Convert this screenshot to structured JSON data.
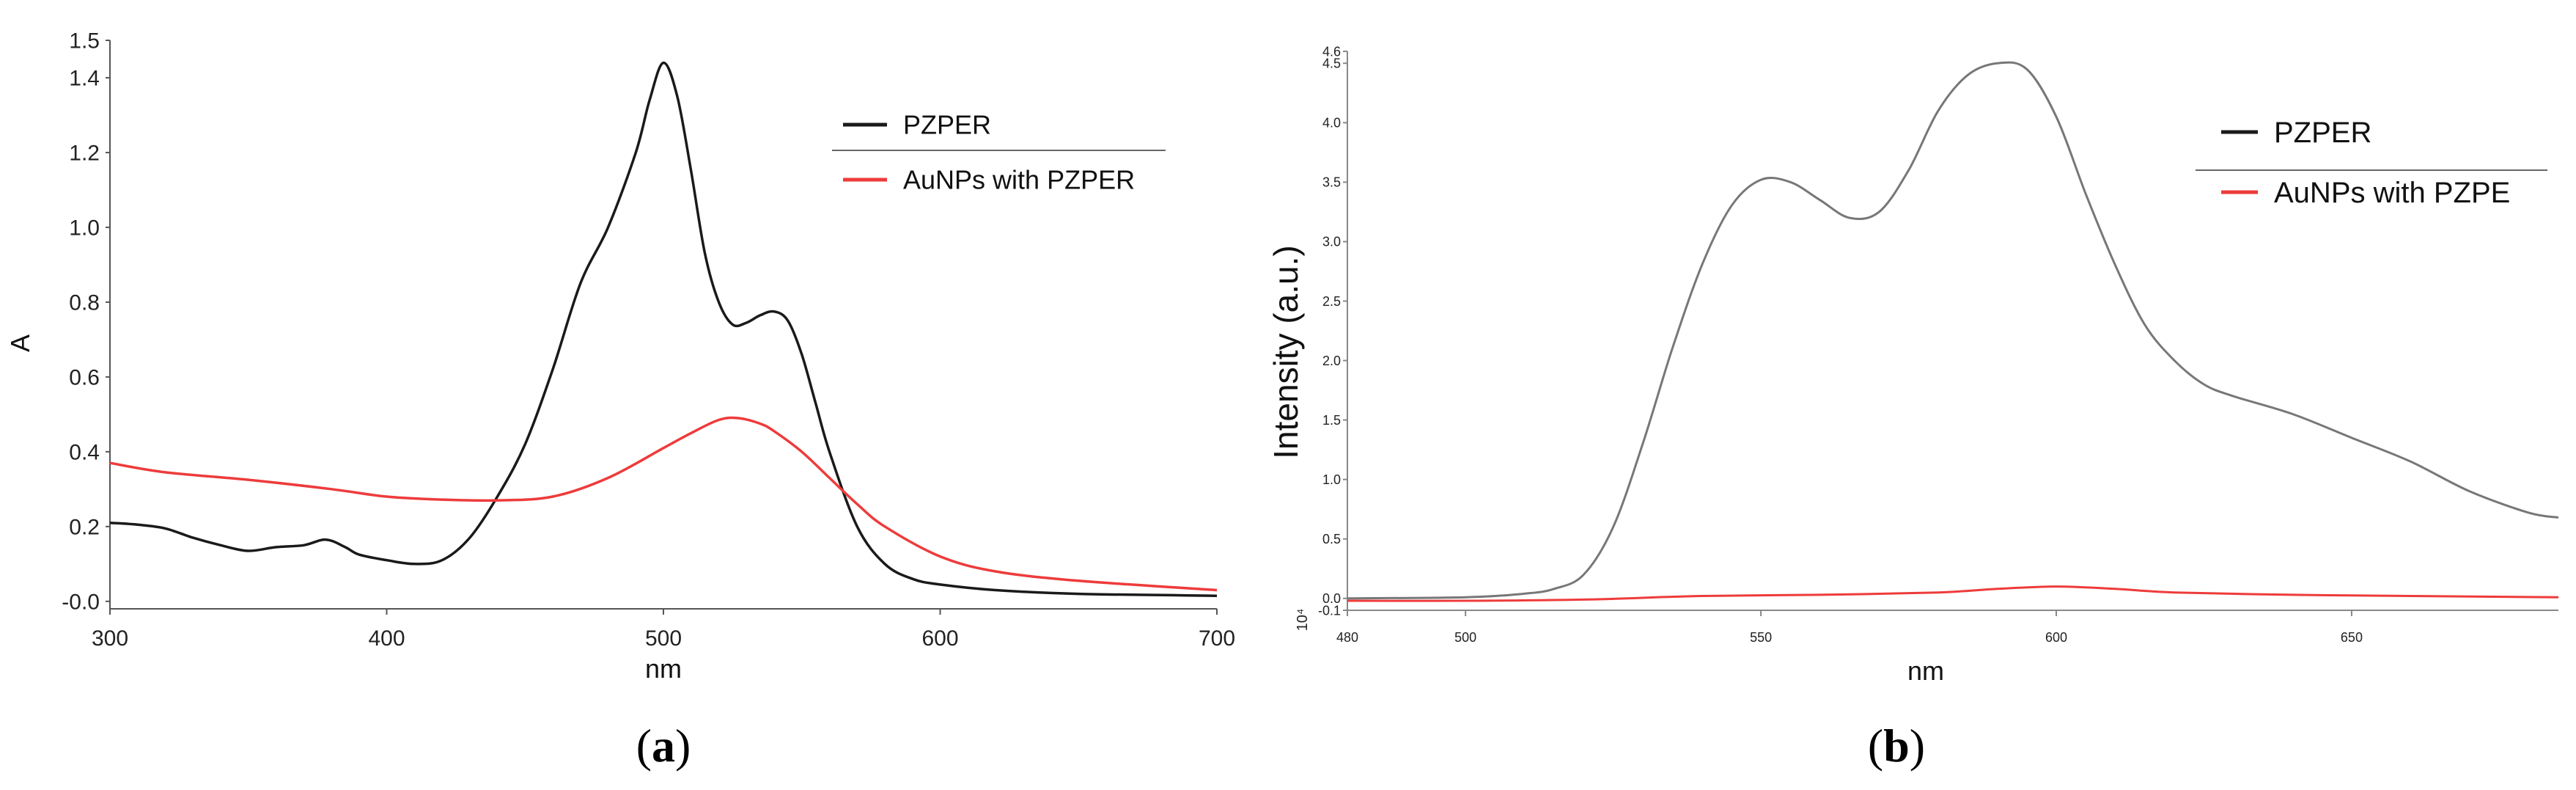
{
  "chart_data": [
    {
      "type": "line",
      "panel_label": "(a)",
      "panel_letter": "a",
      "xlabel": "nm",
      "ylabel": "A",
      "xlim": [
        300,
        700
      ],
      "ylim": [
        -0.02,
        1.5
      ],
      "x_ticks": [
        300,
        400,
        500,
        600,
        700
      ],
      "y_ticks": [
        {
          "value": 0.0,
          "label": "-0.0"
        },
        {
          "value": 0.2,
          "label": "0.2"
        },
        {
          "value": 0.4,
          "label": "0.4"
        },
        {
          "value": 0.6,
          "label": "0.6"
        },
        {
          "value": 0.8,
          "label": "0.8"
        },
        {
          "value": 1.0,
          "label": "1.0"
        },
        {
          "value": 1.2,
          "label": "1.2"
        },
        {
          "value": 1.4,
          "label": "1.4"
        },
        {
          "value": 1.5,
          "label": "1.5"
        }
      ],
      "grid": false,
      "legend": "top-right",
      "series": [
        {
          "name": "PZPER",
          "color": "#1a1a1a",
          "x": [
            300,
            310,
            320,
            330,
            340,
            350,
            360,
            370,
            378,
            385,
            390,
            400,
            410,
            420,
            430,
            440,
            450,
            460,
            470,
            480,
            490,
            495,
            500,
            505,
            510,
            515,
            520,
            525,
            530,
            535,
            540,
            545,
            550,
            555,
            560,
            570,
            580,
            590,
            600,
            620,
            650,
            700
          ],
          "y": [
            0.21,
            0.205,
            0.195,
            0.17,
            0.15,
            0.135,
            0.145,
            0.15,
            0.165,
            0.145,
            0.125,
            0.11,
            0.1,
            0.11,
            0.17,
            0.28,
            0.42,
            0.62,
            0.85,
            1.0,
            1.2,
            1.34,
            1.44,
            1.35,
            1.15,
            0.93,
            0.8,
            0.74,
            0.745,
            0.765,
            0.775,
            0.75,
            0.66,
            0.53,
            0.4,
            0.2,
            0.1,
            0.06,
            0.045,
            0.03,
            0.02,
            0.015
          ]
        },
        {
          "name": "AuNPs with PZPER",
          "color": "#ee3b3b",
          "x": [
            300,
            320,
            350,
            380,
            400,
            420,
            440,
            460,
            480,
            500,
            510,
            520,
            527,
            535,
            540,
            550,
            560,
            570,
            580,
            600,
            620,
            650,
            700
          ],
          "y": [
            0.37,
            0.345,
            0.325,
            0.3,
            0.28,
            0.272,
            0.27,
            0.28,
            0.33,
            0.41,
            0.45,
            0.485,
            0.49,
            0.475,
            0.455,
            0.4,
            0.33,
            0.26,
            0.2,
            0.12,
            0.08,
            0.055,
            0.03
          ]
        }
      ]
    },
    {
      "type": "line",
      "panel_label": "(b)",
      "panel_letter": "b",
      "xlabel": "nm",
      "ylabel": "Intensity (a.u.)",
      "y_multiplier": "10⁴",
      "xlim": [
        480,
        685
      ],
      "ylim": [
        -0.1,
        4.6
      ],
      "x_ticks": [
        480,
        500,
        550,
        600,
        650
      ],
      "y_ticks": [
        {
          "value": -0.1,
          "label": "-0.1"
        },
        {
          "value": 0.0,
          "label": "0.0"
        },
        {
          "value": 0.5,
          "label": "0.5"
        },
        {
          "value": 1.0,
          "label": "1.0"
        },
        {
          "value": 1.5,
          "label": "1.5"
        },
        {
          "value": 2.0,
          "label": "2.0"
        },
        {
          "value": 2.5,
          "label": "2.5"
        },
        {
          "value": 3.0,
          "label": "3.0"
        },
        {
          "value": 3.5,
          "label": "3.5"
        },
        {
          "value": 4.0,
          "label": "4.0"
        },
        {
          "value": 4.5,
          "label": "4.5"
        },
        {
          "value": 4.6,
          "label": "4.6"
        }
      ],
      "grid": false,
      "legend": "top-right",
      "legend_entries": [
        {
          "name": "PZPER",
          "color": "#1a1a1a"
        },
        {
          "name": "AuNPs with PZPE",
          "color": "#ee3b3b"
        }
      ],
      "series": [
        {
          "color": "#777777",
          "x": [
            480,
            500,
            510,
            515,
            520,
            525,
            530,
            535,
            540,
            545,
            550,
            555,
            560,
            565,
            570,
            575,
            580,
            585,
            590,
            595,
            600,
            605,
            610,
            615,
            620,
            625,
            630,
            640,
            650,
            660,
            670,
            680,
            685
          ],
          "y": [
            0,
            0.01,
            0.04,
            0.08,
            0.2,
            0.6,
            1.3,
            2.1,
            2.8,
            3.3,
            3.52,
            3.5,
            3.35,
            3.2,
            3.25,
            3.6,
            4.1,
            4.4,
            4.5,
            4.45,
            4.05,
            3.4,
            2.8,
            2.3,
            2.0,
            1.8,
            1.7,
            1.55,
            1.35,
            1.15,
            0.9,
            0.72,
            0.68
          ]
        },
        {
          "color": "#ee3b3b",
          "x": [
            480,
            500,
            520,
            540,
            560,
            580,
            590,
            600,
            610,
            620,
            640,
            660,
            685
          ],
          "y": [
            -0.02,
            -0.02,
            -0.01,
            0.02,
            0.03,
            0.05,
            0.08,
            0.1,
            0.08,
            0.05,
            0.03,
            0.02,
            0.01
          ]
        }
      ]
    }
  ]
}
